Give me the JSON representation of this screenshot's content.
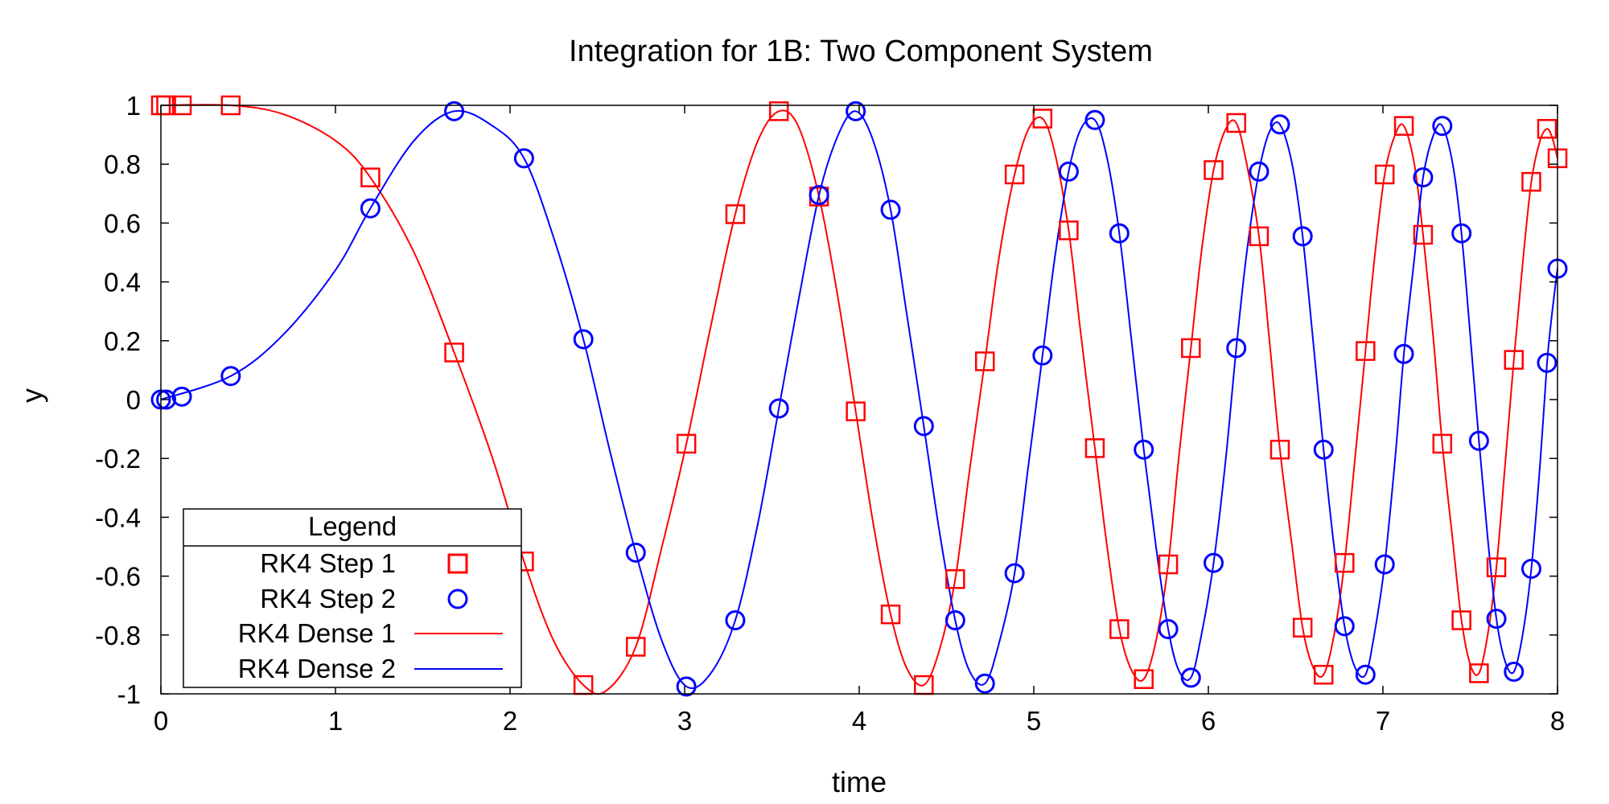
{
  "chart_data": {
    "type": "line",
    "title": "Integration for 1B: Two Component System",
    "xlabel": "time",
    "ylabel": "y",
    "xlim": [
      0,
      8
    ],
    "ylim": [
      -1,
      1
    ],
    "xticks": [
      "0",
      "1",
      "2",
      "3",
      "4",
      "5",
      "6",
      "7",
      "8"
    ],
    "yticks": [
      "1",
      "0.8",
      "0.6",
      "0.4",
      "0.2",
      "0",
      "-0.2",
      "-0.4",
      "-0.6",
      "-0.8",
      "-1"
    ],
    "grid": false,
    "legend_position": "bottom-left",
    "legend": {
      "title": "Legend",
      "entries": [
        {
          "label": "RK4 Step 1",
          "marker": "square",
          "color": "#ff0000"
        },
        {
          "label": "RK4 Step 2",
          "marker": "circle",
          "color": "#0000ff"
        },
        {
          "label": "RK4 Dense 1",
          "marker": "line",
          "color": "#ff0000"
        },
        {
          "label": "RK4 Dense 2",
          "marker": "line",
          "color": "#0000ff"
        }
      ]
    },
    "series": [
      {
        "name": "RK4 Step 1",
        "kind": "points",
        "marker": "square",
        "color": "#ff0000",
        "points": [
          [
            0,
            1
          ],
          [
            0.03,
            1
          ],
          [
            0.12,
            1
          ],
          [
            0.4,
            1
          ],
          [
            1.2,
            0.755
          ],
          [
            1.68,
            0.16
          ],
          [
            2.08,
            -0.55
          ],
          [
            2.42,
            -0.97
          ],
          [
            2.72,
            -0.84
          ],
          [
            3.01,
            -0.15
          ],
          [
            3.29,
            0.63
          ],
          [
            3.54,
            0.98
          ],
          [
            3.77,
            0.69
          ],
          [
            3.98,
            -0.04
          ],
          [
            4.18,
            -0.73
          ],
          [
            4.37,
            -0.97
          ],
          [
            4.55,
            -0.61
          ],
          [
            4.72,
            0.13
          ],
          [
            4.89,
            0.765
          ],
          [
            5.05,
            0.955
          ],
          [
            5.2,
            0.575
          ],
          [
            5.35,
            -0.165
          ],
          [
            5.49,
            -0.78
          ],
          [
            5.63,
            -0.95
          ],
          [
            5.77,
            -0.56
          ],
          [
            5.9,
            0.175
          ],
          [
            6.03,
            0.78
          ],
          [
            6.16,
            0.94
          ],
          [
            6.29,
            0.555
          ],
          [
            6.41,
            -0.17
          ],
          [
            6.54,
            -0.775
          ],
          [
            6.66,
            -0.935
          ],
          [
            6.78,
            -0.555
          ],
          [
            6.9,
            0.165
          ],
          [
            7.01,
            0.765
          ],
          [
            7.12,
            0.93
          ],
          [
            7.23,
            0.56
          ],
          [
            7.34,
            -0.15
          ],
          [
            7.45,
            -0.75
          ],
          [
            7.55,
            -0.93
          ],
          [
            7.65,
            -0.57
          ],
          [
            7.75,
            0.135
          ],
          [
            7.85,
            0.74
          ],
          [
            7.94,
            0.92
          ],
          [
            8.0,
            0.82
          ]
        ]
      },
      {
        "name": "RK4 Step 2",
        "kind": "points",
        "marker": "circle",
        "color": "#0000ff",
        "points": [
          [
            0,
            0
          ],
          [
            0.03,
            0
          ],
          [
            0.12,
            0.01
          ],
          [
            0.4,
            0.08
          ],
          [
            1.2,
            0.65
          ],
          [
            1.68,
            0.98
          ],
          [
            2.08,
            0.82
          ],
          [
            2.42,
            0.205
          ],
          [
            2.72,
            -0.52
          ],
          [
            3.01,
            -0.975
          ],
          [
            3.29,
            -0.75
          ],
          [
            3.54,
            -0.03
          ],
          [
            3.77,
            0.695
          ],
          [
            3.98,
            0.98
          ],
          [
            4.18,
            0.645
          ],
          [
            4.37,
            -0.09
          ],
          [
            4.55,
            -0.75
          ],
          [
            4.72,
            -0.965
          ],
          [
            4.89,
            -0.59
          ],
          [
            5.05,
            0.15
          ],
          [
            5.2,
            0.775
          ],
          [
            5.35,
            0.95
          ],
          [
            5.49,
            0.565
          ],
          [
            5.63,
            -0.17
          ],
          [
            5.77,
            -0.78
          ],
          [
            5.9,
            -0.945
          ],
          [
            6.03,
            -0.555
          ],
          [
            6.16,
            0.175
          ],
          [
            6.29,
            0.775
          ],
          [
            6.41,
            0.935
          ],
          [
            6.54,
            0.555
          ],
          [
            6.66,
            -0.17
          ],
          [
            6.78,
            -0.77
          ],
          [
            6.9,
            -0.935
          ],
          [
            7.01,
            -0.56
          ],
          [
            7.12,
            0.155
          ],
          [
            7.23,
            0.755
          ],
          [
            7.34,
            0.93
          ],
          [
            7.45,
            0.565
          ],
          [
            7.55,
            -0.14
          ],
          [
            7.65,
            -0.745
          ],
          [
            7.75,
            -0.925
          ],
          [
            7.85,
            -0.575
          ],
          [
            7.94,
            0.125
          ],
          [
            8.0,
            0.445
          ]
        ]
      },
      {
        "name": "RK4 Dense 1",
        "kind": "line",
        "color": "#ff0000",
        "points": [
          [
            0,
            1
          ],
          [
            0.4,
            1
          ],
          [
            0.7,
            0.97
          ],
          [
            1.0,
            0.88
          ],
          [
            1.2,
            0.755
          ],
          [
            1.45,
            0.5
          ],
          [
            1.68,
            0.16
          ],
          [
            1.9,
            -0.2
          ],
          [
            2.08,
            -0.55
          ],
          [
            2.25,
            -0.82
          ],
          [
            2.42,
            -0.97
          ],
          [
            2.55,
            -0.99
          ],
          [
            2.72,
            -0.84
          ],
          [
            2.87,
            -0.5
          ],
          [
            3.01,
            -0.15
          ],
          [
            3.15,
            0.25
          ],
          [
            3.29,
            0.63
          ],
          [
            3.42,
            0.88
          ],
          [
            3.54,
            0.98
          ],
          [
            3.65,
            0.93
          ],
          [
            3.77,
            0.69
          ],
          [
            3.88,
            0.34
          ],
          [
            3.98,
            -0.04
          ],
          [
            4.08,
            -0.42
          ],
          [
            4.18,
            -0.73
          ],
          [
            4.27,
            -0.91
          ],
          [
            4.37,
            -0.97
          ],
          [
            4.46,
            -0.85
          ],
          [
            4.55,
            -0.61
          ],
          [
            4.63,
            -0.25
          ],
          [
            4.72,
            0.13
          ],
          [
            4.8,
            0.48
          ],
          [
            4.89,
            0.765
          ],
          [
            4.97,
            0.92
          ],
          [
            5.05,
            0.955
          ],
          [
            5.12,
            0.84
          ],
          [
            5.2,
            0.575
          ],
          [
            5.27,
            0.22
          ],
          [
            5.35,
            -0.165
          ],
          [
            5.42,
            -0.5
          ],
          [
            5.49,
            -0.78
          ],
          [
            5.56,
            -0.92
          ],
          [
            5.63,
            -0.95
          ],
          [
            5.7,
            -0.82
          ],
          [
            5.77,
            -0.56
          ],
          [
            5.83,
            -0.2
          ],
          [
            5.9,
            0.175
          ],
          [
            5.96,
            0.5
          ],
          [
            6.03,
            0.78
          ],
          [
            6.1,
            0.92
          ],
          [
            6.16,
            0.94
          ],
          [
            6.22,
            0.8
          ],
          [
            6.29,
            0.555
          ],
          [
            6.35,
            0.2
          ],
          [
            6.41,
            -0.17
          ],
          [
            6.48,
            -0.5
          ],
          [
            6.54,
            -0.775
          ],
          [
            6.6,
            -0.91
          ],
          [
            6.66,
            -0.935
          ],
          [
            6.72,
            -0.8
          ],
          [
            6.78,
            -0.555
          ],
          [
            6.84,
            -0.2
          ],
          [
            6.9,
            0.165
          ],
          [
            6.95,
            0.47
          ],
          [
            7.01,
            0.765
          ],
          [
            7.07,
            0.9
          ],
          [
            7.12,
            0.93
          ],
          [
            7.18,
            0.8
          ],
          [
            7.23,
            0.56
          ],
          [
            7.29,
            0.2
          ],
          [
            7.34,
            -0.15
          ],
          [
            7.4,
            -0.48
          ],
          [
            7.45,
            -0.75
          ],
          [
            7.5,
            -0.9
          ],
          [
            7.55,
            -0.93
          ],
          [
            7.6,
            -0.8
          ],
          [
            7.65,
            -0.57
          ],
          [
            7.7,
            -0.22
          ],
          [
            7.75,
            0.135
          ],
          [
            7.8,
            0.46
          ],
          [
            7.85,
            0.74
          ],
          [
            7.9,
            0.88
          ],
          [
            7.94,
            0.92
          ],
          [
            7.97,
            0.89
          ],
          [
            8.0,
            0.82
          ]
        ]
      },
      {
        "name": "RK4 Dense 2",
        "kind": "line",
        "color": "#0000ff",
        "points": [
          [
            0,
            0
          ],
          [
            0.4,
            0.08
          ],
          [
            0.7,
            0.22
          ],
          [
            1.0,
            0.44
          ],
          [
            1.2,
            0.65
          ],
          [
            1.45,
            0.88
          ],
          [
            1.68,
            0.98
          ],
          [
            1.9,
            0.93
          ],
          [
            2.08,
            0.82
          ],
          [
            2.25,
            0.55
          ],
          [
            2.42,
            0.205
          ],
          [
            2.57,
            -0.17
          ],
          [
            2.72,
            -0.52
          ],
          [
            2.87,
            -0.82
          ],
          [
            3.01,
            -0.975
          ],
          [
            3.15,
            -0.93
          ],
          [
            3.29,
            -0.75
          ],
          [
            3.42,
            -0.42
          ],
          [
            3.54,
            -0.03
          ],
          [
            3.65,
            0.33
          ],
          [
            3.77,
            0.695
          ],
          [
            3.88,
            0.9
          ],
          [
            3.98,
            0.98
          ],
          [
            4.08,
            0.88
          ],
          [
            4.18,
            0.645
          ],
          [
            4.27,
            0.3
          ],
          [
            4.37,
            -0.09
          ],
          [
            4.46,
            -0.45
          ],
          [
            4.55,
            -0.75
          ],
          [
            4.63,
            -0.92
          ],
          [
            4.72,
            -0.965
          ],
          [
            4.8,
            -0.83
          ],
          [
            4.89,
            -0.59
          ],
          [
            4.97,
            -0.22
          ],
          [
            5.05,
            0.15
          ],
          [
            5.12,
            0.48
          ],
          [
            5.2,
            0.775
          ],
          [
            5.27,
            0.92
          ],
          [
            5.35,
            0.95
          ],
          [
            5.42,
            0.82
          ],
          [
            5.49,
            0.565
          ],
          [
            5.56,
            0.2
          ],
          [
            5.63,
            -0.17
          ],
          [
            5.7,
            -0.5
          ],
          [
            5.77,
            -0.78
          ],
          [
            5.83,
            -0.92
          ],
          [
            5.9,
            -0.945
          ],
          [
            5.96,
            -0.8
          ],
          [
            6.03,
            -0.555
          ],
          [
            6.1,
            -0.2
          ],
          [
            6.16,
            0.175
          ],
          [
            6.22,
            0.5
          ],
          [
            6.29,
            0.775
          ],
          [
            6.35,
            0.91
          ],
          [
            6.41,
            0.935
          ],
          [
            6.48,
            0.8
          ],
          [
            6.54,
            0.555
          ],
          [
            6.6,
            0.2
          ],
          [
            6.66,
            -0.17
          ],
          [
            6.72,
            -0.5
          ],
          [
            6.78,
            -0.77
          ],
          [
            6.84,
            -0.91
          ],
          [
            6.9,
            -0.935
          ],
          [
            6.95,
            -0.8
          ],
          [
            7.01,
            -0.56
          ],
          [
            7.07,
            -0.2
          ],
          [
            7.12,
            0.155
          ],
          [
            7.18,
            0.48
          ],
          [
            7.23,
            0.755
          ],
          [
            7.29,
            0.9
          ],
          [
            7.34,
            0.93
          ],
          [
            7.4,
            0.8
          ],
          [
            7.45,
            0.565
          ],
          [
            7.5,
            0.22
          ],
          [
            7.55,
            -0.14
          ],
          [
            7.6,
            -0.47
          ],
          [
            7.65,
            -0.745
          ],
          [
            7.7,
            -0.89
          ],
          [
            7.75,
            -0.925
          ],
          [
            7.8,
            -0.8
          ],
          [
            7.85,
            -0.575
          ],
          [
            7.9,
            -0.22
          ],
          [
            7.94,
            0.125
          ],
          [
            7.97,
            0.3
          ],
          [
            8.0,
            0.445
          ]
        ]
      }
    ]
  }
}
